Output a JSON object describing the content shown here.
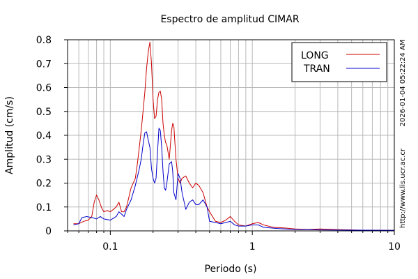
{
  "chart_data": {
    "type": "line",
    "title": "Espectro de amplitud CIMAR",
    "xlabel": "Periodo (s)",
    "ylabel": "Amplitud (cm/s)",
    "xscale": "log",
    "xlim": [
      0.05,
      10
    ],
    "ylim": [
      0,
      0.8
    ],
    "grid": true,
    "legend_position": "top-right",
    "x_ticks": [
      {
        "value": 0.1,
        "label": "0.1"
      },
      {
        "value": 1,
        "label": "1"
      },
      {
        "value": 10,
        "label": "10"
      }
    ],
    "y_ticks": [
      {
        "value": 0,
        "label": "0"
      },
      {
        "value": 0.1,
        "label": "0.1"
      },
      {
        "value": 0.2,
        "label": "0.2"
      },
      {
        "value": 0.3,
        "label": "0.3"
      },
      {
        "value": 0.4,
        "label": "0.4"
      },
      {
        "value": 0.5,
        "label": "0.5"
      },
      {
        "value": 0.6,
        "label": "0.6"
      },
      {
        "value": 0.7,
        "label": "0.7"
      },
      {
        "value": 0.8,
        "label": "0.8"
      }
    ],
    "series": [
      {
        "name": "LONG",
        "color": "#cc0000",
        "points": [
          [
            0.055,
            0.03
          ],
          [
            0.06,
            0.03
          ],
          [
            0.065,
            0.04
          ],
          [
            0.07,
            0.045
          ],
          [
            0.074,
            0.06
          ],
          [
            0.077,
            0.12
          ],
          [
            0.08,
            0.15
          ],
          [
            0.083,
            0.13
          ],
          [
            0.087,
            0.095
          ],
          [
            0.09,
            0.08
          ],
          [
            0.095,
            0.085
          ],
          [
            0.1,
            0.08
          ],
          [
            0.105,
            0.09
          ],
          [
            0.11,
            0.1
          ],
          [
            0.115,
            0.12
          ],
          [
            0.12,
            0.08
          ],
          [
            0.125,
            0.08
          ],
          [
            0.13,
            0.1
          ],
          [
            0.135,
            0.14
          ],
          [
            0.14,
            0.18
          ],
          [
            0.145,
            0.2
          ],
          [
            0.15,
            0.22
          ],
          [
            0.155,
            0.28
          ],
          [
            0.16,
            0.35
          ],
          [
            0.165,
            0.42
          ],
          [
            0.17,
            0.5
          ],
          [
            0.175,
            0.58
          ],
          [
            0.18,
            0.68
          ],
          [
            0.185,
            0.75
          ],
          [
            0.19,
            0.79
          ],
          [
            0.195,
            0.7
          ],
          [
            0.2,
            0.55
          ],
          [
            0.205,
            0.47
          ],
          [
            0.21,
            0.48
          ],
          [
            0.215,
            0.55
          ],
          [
            0.22,
            0.58
          ],
          [
            0.225,
            0.585
          ],
          [
            0.23,
            0.55
          ],
          [
            0.235,
            0.45
          ],
          [
            0.24,
            0.4
          ],
          [
            0.245,
            0.37
          ],
          [
            0.25,
            0.36
          ],
          [
            0.26,
            0.3
          ],
          [
            0.27,
            0.42
          ],
          [
            0.275,
            0.45
          ],
          [
            0.28,
            0.44
          ],
          [
            0.29,
            0.3
          ],
          [
            0.3,
            0.22
          ],
          [
            0.31,
            0.2
          ],
          [
            0.32,
            0.22
          ],
          [
            0.34,
            0.23
          ],
          [
            0.36,
            0.2
          ],
          [
            0.38,
            0.18
          ],
          [
            0.4,
            0.2
          ],
          [
            0.42,
            0.19
          ],
          [
            0.45,
            0.16
          ],
          [
            0.48,
            0.1
          ],
          [
            0.5,
            0.08
          ],
          [
            0.55,
            0.04
          ],
          [
            0.6,
            0.035
          ],
          [
            0.65,
            0.045
          ],
          [
            0.7,
            0.06
          ],
          [
            0.75,
            0.04
          ],
          [
            0.8,
            0.025
          ],
          [
            0.9,
            0.02
          ],
          [
            1.0,
            0.03
          ],
          [
            1.1,
            0.035
          ],
          [
            1.2,
            0.025
          ],
          [
            1.4,
            0.015
          ],
          [
            1.7,
            0.012
          ],
          [
            2.0,
            0.008
          ],
          [
            2.5,
            0.006
          ],
          [
            3.0,
            0.008
          ],
          [
            4.0,
            0.005
          ],
          [
            6.0,
            0.003
          ],
          [
            10.0,
            0.002
          ]
        ]
      },
      {
        "name": "TRAN",
        "color": "#0000cc",
        "points": [
          [
            0.055,
            0.025
          ],
          [
            0.06,
            0.03
          ],
          [
            0.063,
            0.055
          ],
          [
            0.068,
            0.06
          ],
          [
            0.075,
            0.055
          ],
          [
            0.08,
            0.05
          ],
          [
            0.085,
            0.06
          ],
          [
            0.09,
            0.05
          ],
          [
            0.1,
            0.045
          ],
          [
            0.11,
            0.06
          ],
          [
            0.115,
            0.08
          ],
          [
            0.12,
            0.07
          ],
          [
            0.125,
            0.06
          ],
          [
            0.13,
            0.09
          ],
          [
            0.14,
            0.13
          ],
          [
            0.15,
            0.19
          ],
          [
            0.16,
            0.26
          ],
          [
            0.165,
            0.3
          ],
          [
            0.17,
            0.36
          ],
          [
            0.175,
            0.41
          ],
          [
            0.18,
            0.415
          ],
          [
            0.185,
            0.38
          ],
          [
            0.19,
            0.35
          ],
          [
            0.195,
            0.26
          ],
          [
            0.2,
            0.22
          ],
          [
            0.205,
            0.2
          ],
          [
            0.21,
            0.22
          ],
          [
            0.215,
            0.33
          ],
          [
            0.22,
            0.43
          ],
          [
            0.225,
            0.42
          ],
          [
            0.23,
            0.35
          ],
          [
            0.235,
            0.25
          ],
          [
            0.24,
            0.18
          ],
          [
            0.245,
            0.17
          ],
          [
            0.25,
            0.2
          ],
          [
            0.26,
            0.28
          ],
          [
            0.27,
            0.29
          ],
          [
            0.275,
            0.25
          ],
          [
            0.28,
            0.16
          ],
          [
            0.29,
            0.13
          ],
          [
            0.3,
            0.24
          ],
          [
            0.31,
            0.22
          ],
          [
            0.32,
            0.16
          ],
          [
            0.34,
            0.09
          ],
          [
            0.36,
            0.12
          ],
          [
            0.38,
            0.13
          ],
          [
            0.4,
            0.11
          ],
          [
            0.42,
            0.11
          ],
          [
            0.45,
            0.13
          ],
          [
            0.48,
            0.1
          ],
          [
            0.5,
            0.04
          ],
          [
            0.55,
            0.035
          ],
          [
            0.6,
            0.03
          ],
          [
            0.65,
            0.035
          ],
          [
            0.7,
            0.04
          ],
          [
            0.75,
            0.025
          ],
          [
            0.8,
            0.02
          ],
          [
            0.9,
            0.02
          ],
          [
            1.0,
            0.025
          ],
          [
            1.1,
            0.025
          ],
          [
            1.2,
            0.015
          ],
          [
            1.5,
            0.01
          ],
          [
            2.0,
            0.006
          ],
          [
            3.0,
            0.004
          ],
          [
            5.0,
            0.003
          ],
          [
            10.0,
            0.002
          ]
        ]
      }
    ]
  },
  "side_text": {
    "timestamp": "2026-01-04 05:22:24 AM",
    "url": "http://www.lis.ucr.ac.cr"
  }
}
